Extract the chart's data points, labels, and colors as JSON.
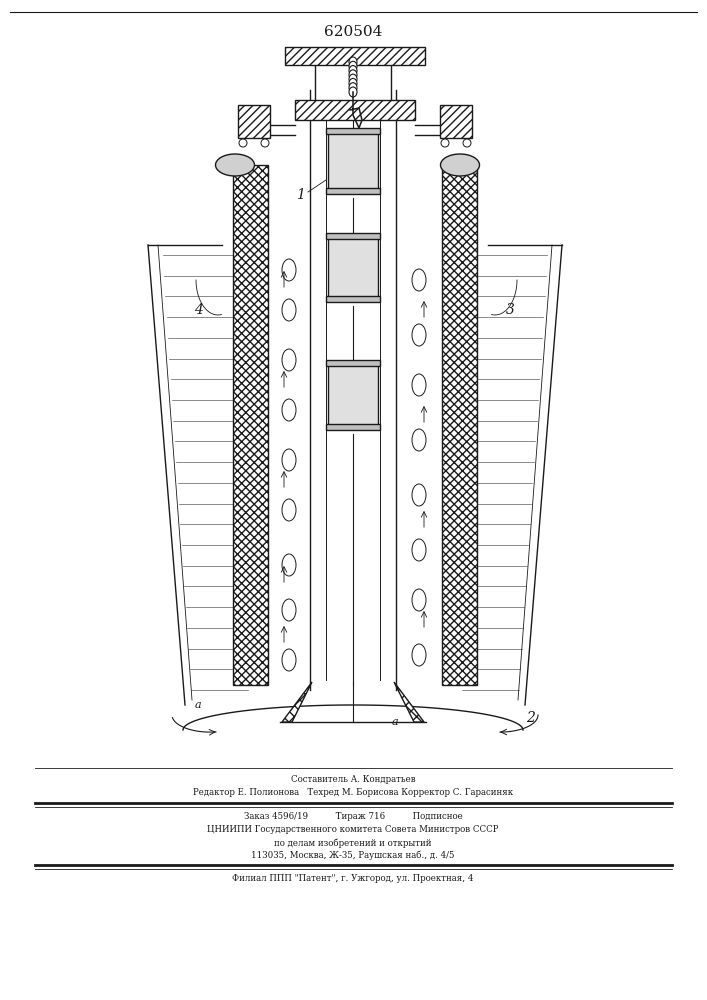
{
  "patent_number": "620504",
  "line_color": "#1a1a1a",
  "figure_width": 7.07,
  "figure_height": 10.0,
  "footer_lines": [
    "Составитель А. Кондратьев",
    "Редактор Е. Полионова   Техред М. Борисова Корректор С. Гарасиняк",
    "Заказ 4596/19          Тираж 716          Подписное",
    "ЦНИИПИ Государственного комитета Совета Министров СССР",
    "по делам изобретений и открытий",
    "113035, Москва, Ж-35, Раушская наб., д. 4/5",
    "Филиал ППП \"Патент\", г. Ужгород, ул. Проектная, 4"
  ]
}
